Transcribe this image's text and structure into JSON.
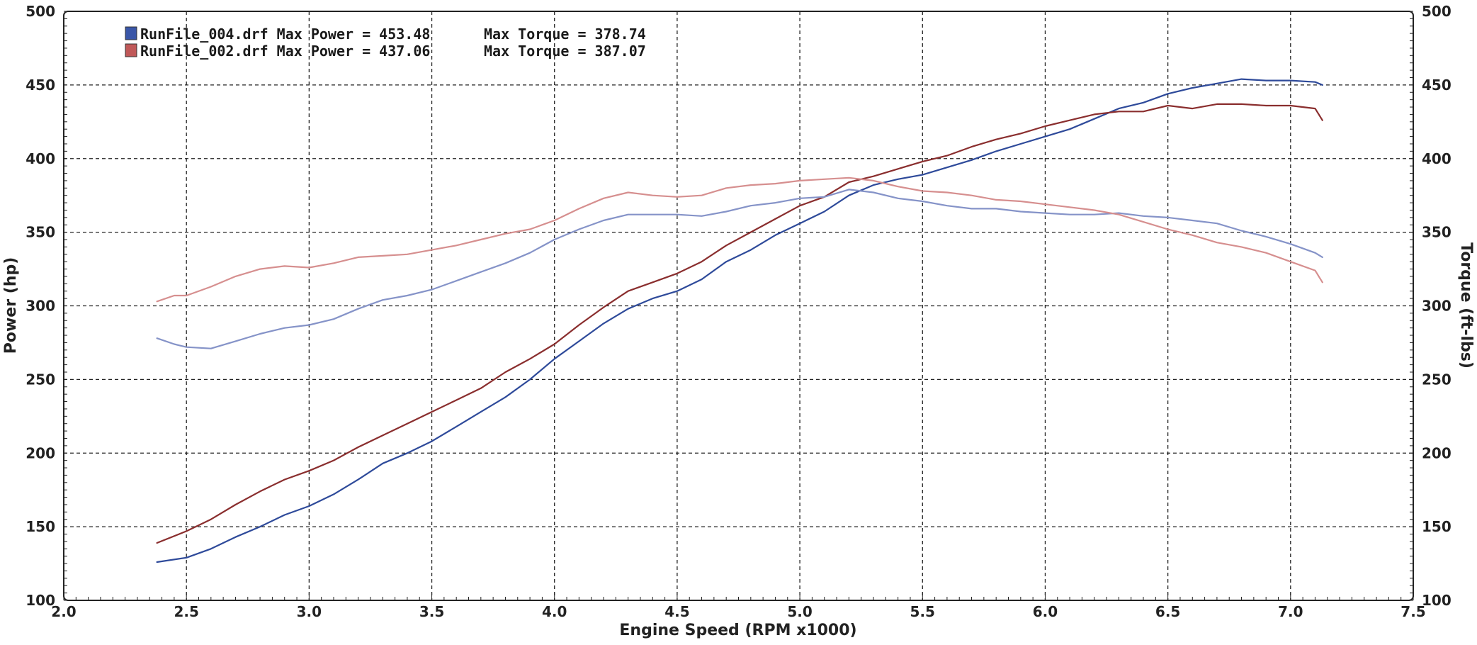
{
  "chart_data": {
    "type": "line",
    "xlabel": "Engine Speed (RPM x1000)",
    "ylabel": "Power (hp)",
    "y2label": "Torque (ft-lbs)",
    "xlim": [
      2.0,
      7.5
    ],
    "ylim": [
      100,
      500
    ],
    "y2lim": [
      100,
      500
    ],
    "xticks": [
      "2.0",
      "2.5",
      "3.0",
      "3.5",
      "4.0",
      "4.5",
      "5.0",
      "5.5",
      "6.0",
      "6.5",
      "7.0",
      "7.5"
    ],
    "yticks": [
      "100",
      "150",
      "200",
      "250",
      "300",
      "350",
      "400",
      "450",
      "500"
    ],
    "y2ticks": [
      "100",
      "150",
      "200",
      "250",
      "300",
      "350",
      "400",
      "450",
      "500"
    ],
    "grid": true,
    "legend_position": "top-left",
    "legend": [
      {
        "label": "RunFile_004.drf Max Power = 453.48",
        "torque_label": "Max Torque = 378.74",
        "color": "#3a56a8"
      },
      {
        "label": "RunFile_002.drf Max Power = 437.06",
        "torque_label": "Max Torque = 387.07",
        "color": "#c05858"
      }
    ],
    "series": [
      {
        "name": "RunFile_004.drf",
        "measure": "Power",
        "color": "#2e4a9a",
        "x": [
          2.38,
          2.5,
          2.6,
          2.7,
          2.8,
          2.9,
          3.0,
          3.1,
          3.2,
          3.3,
          3.4,
          3.5,
          3.6,
          3.7,
          3.8,
          3.9,
          4.0,
          4.1,
          4.2,
          4.3,
          4.4,
          4.5,
          4.6,
          4.7,
          4.8,
          4.9,
          5.0,
          5.1,
          5.2,
          5.3,
          5.4,
          5.5,
          5.6,
          5.7,
          5.8,
          5.9,
          6.0,
          6.1,
          6.2,
          6.3,
          6.4,
          6.5,
          6.6,
          6.7,
          6.8,
          6.9,
          7.0,
          7.1,
          7.13
        ],
        "values": [
          126,
          129,
          135,
          143,
          150,
          158,
          164,
          172,
          182,
          193,
          200,
          208,
          218,
          228,
          238,
          250,
          264,
          276,
          288,
          298,
          305,
          310,
          318,
          330,
          338,
          348,
          356,
          364,
          375,
          382,
          386,
          389,
          394,
          399,
          405,
          410,
          415,
          420,
          427,
          434,
          438,
          444,
          448,
          451,
          454,
          453,
          453,
          452,
          450
        ]
      },
      {
        "name": "RunFile_002.drf",
        "measure": "Power",
        "color": "#8a2e2e",
        "x": [
          2.38,
          2.5,
          2.6,
          2.7,
          2.8,
          2.9,
          3.0,
          3.1,
          3.2,
          3.3,
          3.4,
          3.5,
          3.6,
          3.7,
          3.8,
          3.9,
          4.0,
          4.1,
          4.2,
          4.3,
          4.4,
          4.5,
          4.6,
          4.7,
          4.8,
          4.9,
          5.0,
          5.1,
          5.2,
          5.3,
          5.4,
          5.5,
          5.6,
          5.7,
          5.8,
          5.9,
          6.0,
          6.1,
          6.2,
          6.3,
          6.4,
          6.5,
          6.6,
          6.7,
          6.8,
          6.9,
          7.0,
          7.1,
          7.13
        ],
        "values": [
          139,
          147,
          155,
          165,
          174,
          182,
          188,
          195,
          204,
          212,
          220,
          228,
          236,
          244,
          255,
          264,
          274,
          287,
          299,
          310,
          316,
          322,
          330,
          341,
          350,
          359,
          368,
          374,
          384,
          388,
          393,
          398,
          402,
          408,
          413,
          417,
          422,
          426,
          430,
          432,
          432,
          436,
          434,
          437,
          437,
          436,
          436,
          434,
          426
        ]
      },
      {
        "name": "RunFile_004.drf",
        "measure": "Torque",
        "color": "#8593c8",
        "x": [
          2.38,
          2.45,
          2.5,
          2.6,
          2.7,
          2.8,
          2.9,
          3.0,
          3.1,
          3.2,
          3.3,
          3.4,
          3.5,
          3.6,
          3.7,
          3.8,
          3.9,
          4.0,
          4.1,
          4.2,
          4.3,
          4.4,
          4.5,
          4.6,
          4.7,
          4.8,
          4.9,
          5.0,
          5.1,
          5.2,
          5.3,
          5.4,
          5.5,
          5.6,
          5.7,
          5.8,
          5.9,
          6.0,
          6.1,
          6.2,
          6.3,
          6.4,
          6.5,
          6.6,
          6.7,
          6.8,
          6.9,
          7.0,
          7.1,
          7.13
        ],
        "values": [
          278,
          274,
          272,
          271,
          276,
          281,
          285,
          287,
          291,
          298,
          304,
          307,
          311,
          317,
          323,
          329,
          336,
          345,
          352,
          358,
          362,
          362,
          362,
          361,
          364,
          368,
          370,
          373,
          374,
          379,
          377,
          373,
          371,
          368,
          366,
          366,
          364,
          363,
          362,
          362,
          363,
          361,
          360,
          358,
          356,
          351,
          347,
          342,
          336,
          333
        ]
      },
      {
        "name": "RunFile_002.drf",
        "measure": "Torque",
        "color": "#d68f8f",
        "x": [
          2.38,
          2.45,
          2.5,
          2.6,
          2.7,
          2.8,
          2.9,
          3.0,
          3.1,
          3.2,
          3.3,
          3.4,
          3.5,
          3.6,
          3.7,
          3.8,
          3.9,
          4.0,
          4.1,
          4.2,
          4.3,
          4.4,
          4.5,
          4.6,
          4.7,
          4.8,
          4.9,
          5.0,
          5.1,
          5.2,
          5.3,
          5.4,
          5.5,
          5.6,
          5.7,
          5.8,
          5.9,
          6.0,
          6.1,
          6.2,
          6.3,
          6.4,
          6.5,
          6.6,
          6.7,
          6.8,
          6.9,
          7.0,
          7.1,
          7.13
        ],
        "values": [
          303,
          307,
          307,
          313,
          320,
          325,
          327,
          326,
          329,
          333,
          334,
          335,
          338,
          341,
          345,
          349,
          352,
          358,
          366,
          373,
          377,
          375,
          374,
          375,
          380,
          382,
          383,
          385,
          386,
          387,
          385,
          381,
          378,
          377,
          375,
          372,
          371,
          369,
          367,
          365,
          362,
          357,
          352,
          348,
          343,
          340,
          336,
          330,
          324,
          316
        ]
      }
    ]
  }
}
